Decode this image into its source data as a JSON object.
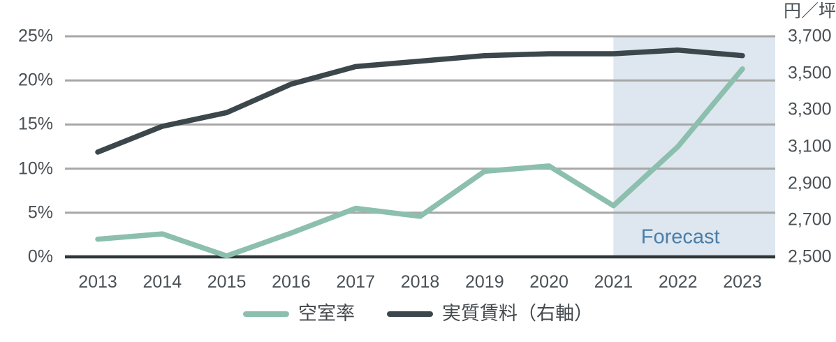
{
  "chart_data": {
    "type": "line",
    "x": [
      2013,
      2014,
      2015,
      2016,
      2017,
      2018,
      2019,
      2020,
      2021,
      2022,
      2023
    ],
    "x_tick_labels": [
      "2013",
      "2014",
      "2015",
      "2016",
      "2017",
      "2018",
      "2019",
      "2020",
      "2021",
      "2022",
      "2023"
    ],
    "series": [
      {
        "name": "空室率",
        "axis": "left",
        "color": "#8CBFAD",
        "values": [
          2.0,
          2.6,
          0.1,
          2.7,
          5.5,
          4.6,
          9.7,
          10.3,
          5.8,
          12.5,
          21.3
        ]
      },
      {
        "name": "実質賃料（右軸）",
        "axis": "right",
        "color": "#3C474C",
        "values": [
          3070,
          3210,
          3285,
          3440,
          3535,
          3565,
          3595,
          3605,
          3605,
          3625,
          3595
        ]
      }
    ],
    "left_axis": {
      "unit": "%",
      "min": 0,
      "max": 25,
      "tick_labels": [
        "0%",
        "5%",
        "10%",
        "15%",
        "20%",
        "25%"
      ],
      "tick_values": [
        0,
        5,
        10,
        15,
        20,
        25
      ]
    },
    "right_axis": {
      "title": "円／坪",
      "min": 2500,
      "max": 3700,
      "tick_labels": [
        "2,500",
        "2,700",
        "2,900",
        "3,100",
        "3,300",
        "3,500",
        "3,700"
      ],
      "tick_values": [
        2500,
        2700,
        2900,
        3100,
        3300,
        3500,
        3700
      ]
    },
    "forecast": {
      "label": "Forecast",
      "start_year": 2021,
      "background": "#DEE7F0",
      "text_color": "#4B7EA8"
    },
    "legend": [
      {
        "label": "空室率",
        "color": "#8CBFAD"
      },
      {
        "label": "実質賃料（右軸）",
        "color": "#3C474C"
      }
    ],
    "grid": true,
    "gridline_color": "#A7A7A7",
    "axis_line_color": "#2F3638",
    "legend_position": "bottom"
  }
}
